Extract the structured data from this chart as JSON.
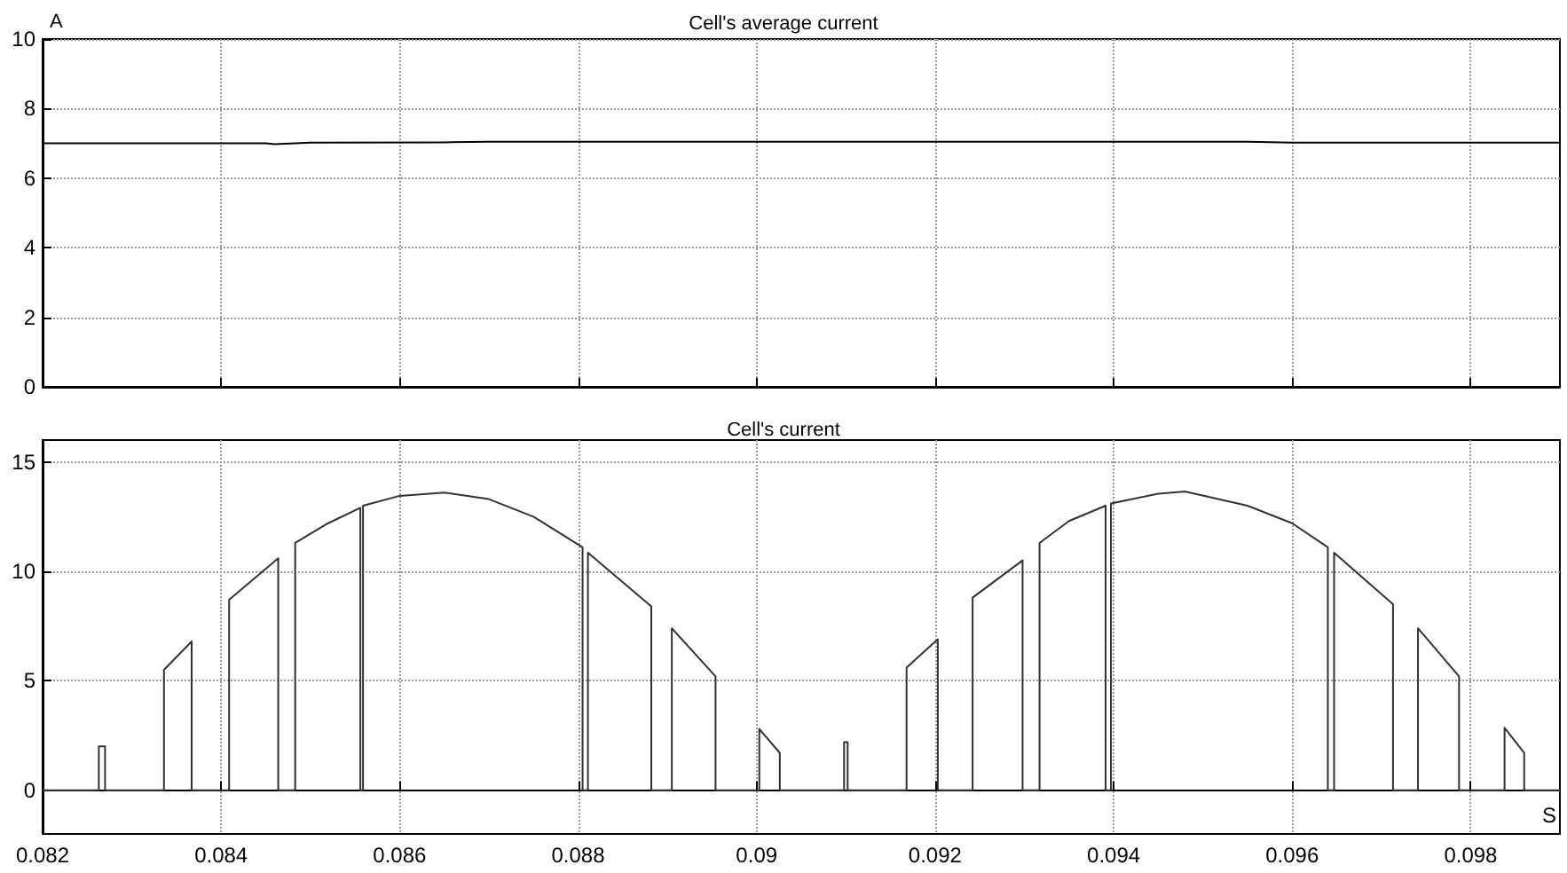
{
  "chart_data": [
    {
      "type": "line",
      "title": "Cell's average current",
      "ylabel": "A",
      "tick_labels": "y",
      "grid": true,
      "xlim": [
        0.082,
        0.099
      ],
      "xticks": [
        0.082,
        0.084,
        0.086,
        0.088,
        0.09,
        0.092,
        0.094,
        0.096,
        0.098
      ],
      "ylim": [
        0,
        10
      ],
      "yticks": [
        0,
        2,
        4,
        6,
        8,
        10
      ],
      "series": [
        {
          "color": "#000000",
          "x": [
            0.082,
            0.0845,
            0.0846,
            0.085,
            0.0865,
            0.087,
            0.0955,
            0.096,
            0.099
          ],
          "values": [
            7,
            7,
            6.98,
            7.02,
            7.03,
            7.05,
            7.05,
            7.02,
            7.02
          ]
        }
      ]
    },
    {
      "type": "line",
      "title": "Cell's current",
      "xlabel": "S",
      "grid": true,
      "xlim": [
        0.082,
        0.099
      ],
      "xticks": [
        0.082,
        0.084,
        0.086,
        0.088,
        0.09,
        0.092,
        0.094,
        0.096,
        0.098
      ],
      "ylim": [
        -2,
        16
      ],
      "yticks": [
        0,
        5,
        10,
        15
      ],
      "series": [
        {
          "color": "#333333",
          "x": [
            0.082,
            0.08263,
            0.08263,
            0.0827,
            0.0827,
            0.08336,
            0.08336,
            0.08367,
            0.08367,
            0.08409,
            0.08409,
            0.08464,
            0.08464,
            0.08483,
            0.08483,
            0.0852,
            0.08556,
            0.08556,
            0.08559,
            0.08559,
            0.086,
            0.0865,
            0.087,
            0.0875,
            0.08805,
            0.08805,
            0.08811,
            0.08811,
            0.08882,
            0.08882,
            0.08905,
            0.08905,
            0.08954,
            0.08954,
            0.09003,
            0.09003,
            0.09026,
            0.09026,
            0.09098,
            0.09098,
            0.09102,
            0.09102,
            0.09168,
            0.09168,
            0.09203,
            0.09203,
            0.09242,
            0.09242,
            0.09298,
            0.09298,
            0.09317,
            0.09317,
            0.0935,
            0.09391,
            0.09391,
            0.09397,
            0.09397,
            0.0945,
            0.0948,
            0.0955,
            0.096,
            0.0964,
            0.0964,
            0.09647,
            0.09647,
            0.09713,
            0.09713,
            0.09741,
            0.09741,
            0.09787,
            0.09787,
            0.09838,
            0.09838,
            0.0986,
            0.0986,
            0.099
          ],
          "values": [
            0,
            0,
            2.0,
            2.0,
            0,
            0,
            5.5,
            6.8,
            0,
            0,
            8.7,
            10.6,
            0,
            0,
            11.3,
            12.2,
            12.9,
            0,
            0,
            13.0,
            13.45,
            13.6,
            13.3,
            12.5,
            11.1,
            0,
            0,
            10.85,
            8.4,
            0,
            0,
            7.4,
            5.2,
            0,
            0,
            2.8,
            1.7,
            0,
            0,
            2.2,
            2.2,
            0,
            0,
            5.6,
            6.9,
            0,
            0,
            8.8,
            10.5,
            0,
            0,
            11.3,
            12.3,
            13.0,
            0,
            0,
            13.1,
            13.55,
            13.65,
            13.0,
            12.2,
            11.1,
            0,
            0,
            10.85,
            8.5,
            0,
            0,
            7.4,
            5.2,
            0,
            0,
            2.85,
            1.7,
            0,
            0
          ]
        }
      ]
    }
  ]
}
